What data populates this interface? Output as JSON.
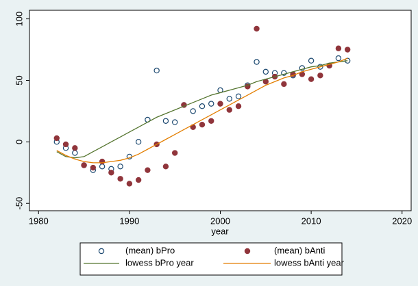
{
  "chart_data": {
    "type": "scatter",
    "x_label": "year",
    "x": [
      1982,
      1983,
      1984,
      1985,
      1986,
      1987,
      1988,
      1989,
      1990,
      1991,
      1992,
      1993,
      1994,
      1995,
      1996,
      1997,
      1998,
      1999,
      2000,
      2001,
      2002,
      2003,
      2004,
      2005,
      2006,
      2007,
      2008,
      2009,
      2010,
      2011,
      2012,
      2013,
      2014
    ],
    "series": [
      {
        "name": "(mean) bPro",
        "type": "scatter",
        "marker": "hollow",
        "color": "#1a476f",
        "values": [
          0,
          -5,
          -9,
          -19,
          -23,
          -20,
          -22,
          -20,
          -12,
          0,
          18,
          58,
          17,
          16,
          30,
          25,
          29,
          31,
          42,
          35,
          37,
          46,
          65,
          57,
          56,
          56,
          54,
          60,
          66,
          61,
          62,
          68,
          66
        ]
      },
      {
        "name": "(mean) bAnti",
        "type": "scatter",
        "marker": "filled",
        "color": "#90353b",
        "values": [
          3,
          -2,
          -5,
          -19,
          -21,
          -16,
          -25,
          -30,
          -34,
          -31,
          -23,
          -2,
          -20,
          -9,
          30,
          12,
          14,
          17,
          31,
          26,
          29,
          45,
          92,
          49,
          53,
          47,
          55,
          55,
          51,
          54,
          62,
          76,
          75
        ]
      },
      {
        "name": "lowess bPro year",
        "type": "line",
        "color": "#55752f",
        "values": [
          -8,
          -12,
          -13,
          -12,
          -8,
          -4,
          0,
          4,
          8,
          12,
          16,
          20,
          23,
          26,
          29,
          32,
          35,
          38,
          40,
          42,
          44,
          46,
          49,
          51,
          53,
          55,
          57,
          59,
          61,
          62,
          64,
          65,
          66
        ]
      },
      {
        "name": "lowess bAnti year",
        "type": "line",
        "color": "#e37e00",
        "values": [
          -7,
          -11,
          -14,
          -16,
          -17,
          -17,
          -16,
          -15,
          -13,
          -10,
          -6,
          -2,
          2,
          6,
          10,
          14,
          18,
          22,
          26,
          30,
          34,
          38,
          42,
          46,
          49,
          52,
          54,
          57,
          59,
          61,
          63,
          65,
          68
        ]
      }
    ],
    "xlim": [
      1979,
      2021
    ],
    "xticks": [
      1980,
      1990,
      2000,
      2010,
      2020
    ],
    "ylim": [
      -56,
      107
    ],
    "yticks": [
      -50,
      0,
      50,
      100
    ],
    "grid": false,
    "legend": "bottom"
  }
}
